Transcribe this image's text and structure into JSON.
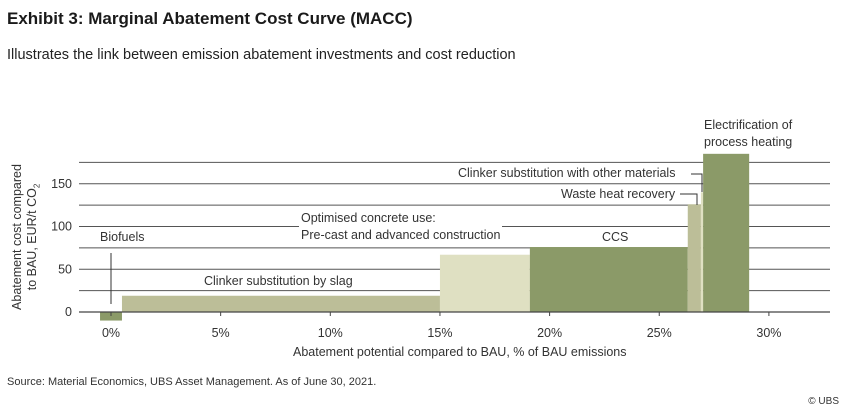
{
  "header": {
    "title": "Exhibit 3: Marginal Abatement Cost Curve (MACC)",
    "subtitle": "Illustrates the link between emission abatement investments and cost reduction"
  },
  "chart_data": {
    "type": "bar",
    "subtype": "marginal-abatement-cost-curve (variable-width bars)",
    "xlabel": "Abatement potential compared to BAU, % of BAU emissions",
    "ylabel_line1": "Abatement cost compared",
    "ylabel_line2": "to BAU, EUR/t CO",
    "ylabel_sub": "2",
    "xlim": [
      -1.5,
      33
    ],
    "ylim": [
      -10,
      185
    ],
    "x_ticks": [
      "0%",
      "5%",
      "10%",
      "15%",
      "20%",
      "25%",
      "30%"
    ],
    "x_tick_values": [
      0,
      5,
      10,
      15,
      20,
      25,
      30
    ],
    "y_ticks": [
      "0",
      "50",
      "100",
      "150"
    ],
    "y_tick_values": [
      0,
      50,
      100,
      150
    ],
    "gridlines": [
      25,
      50,
      75,
      100,
      125,
      150,
      175
    ],
    "grid": true,
    "segments": [
      {
        "label": "Biofuels",
        "x_start": -0.5,
        "x_end": 0.5,
        "value": -10,
        "color": "#8b9a68"
      },
      {
        "label": "Clinker substitution by slag",
        "x_start": 0.5,
        "x_end": 15,
        "value": 19,
        "color": "#bcbe98"
      },
      {
        "label": "Optimised concrete use:",
        "label2": "Pre-cast and advanced construction",
        "x_start": 15,
        "x_end": 19.1,
        "value": 67,
        "color": "#dfe0c2"
      },
      {
        "label": "CCS",
        "x_start": 19.1,
        "x_end": 26.3,
        "value": 76,
        "color": "#8b9a68"
      },
      {
        "label": "Waste heat recovery",
        "x_start": 26.3,
        "x_end": 26.9,
        "value": 126,
        "color": "#bcbe98"
      },
      {
        "label": "Clinker substitution with other materials",
        "x_start": 26.9,
        "x_end": 27.0,
        "value": 140,
        "color": "#dfe0c2"
      },
      {
        "label": "Electrification of",
        "label2": "process heating",
        "x_start": 27.0,
        "x_end": 29.1,
        "value": 185,
        "color": "#8b9a68"
      }
    ]
  },
  "footer": {
    "source": "Source: Material Economics, UBS Asset Management. As of June 30, 2021.",
    "copyright": "© UBS"
  }
}
